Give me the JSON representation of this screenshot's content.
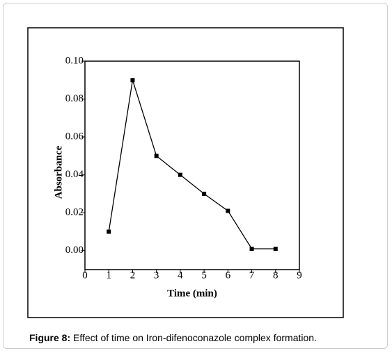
{
  "chart_data": {
    "type": "line",
    "x_label": "Time (min)",
    "y_label": "Absorbance",
    "x": [
      1,
      2,
      3,
      4,
      5,
      6,
      7,
      8
    ],
    "series": [
      {
        "name": "Absorbance",
        "color": "#000000",
        "values": [
          0.01,
          0.09,
          0.05,
          0.04,
          0.03,
          0.021,
          0.001,
          0.001
        ]
      }
    ],
    "xlim": [
      0,
      9
    ],
    "xticks": [
      0,
      1,
      2,
      3,
      4,
      5,
      6,
      7,
      8,
      9
    ],
    "ylim": [
      -0.01,
      0.1
    ],
    "yticks": [
      {
        "value": 0,
        "label": "0.00"
      },
      {
        "value": 0.02,
        "label": "0.02"
      },
      {
        "value": 0.04,
        "label": "0.04"
      },
      {
        "value": 0.06,
        "label": "0.06"
      },
      {
        "value": 0.08,
        "label": "0.08"
      },
      {
        "value": 0.1,
        "label": "0.10"
      }
    ],
    "grid": false
  },
  "caption": {
    "label": "Figure 8:",
    "text": "Effect of time on Iron-difenoconazole complex formation."
  }
}
